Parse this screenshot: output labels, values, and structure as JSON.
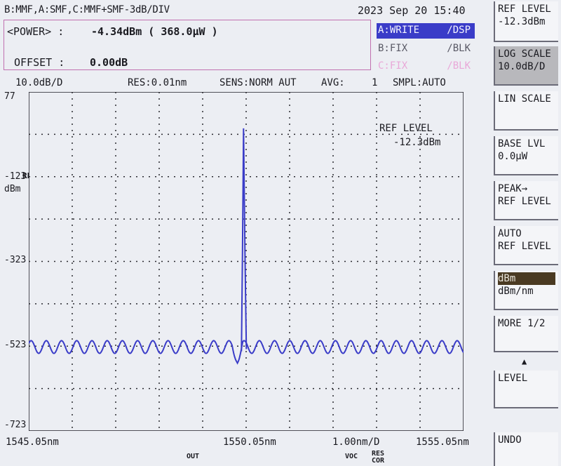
{
  "header": {
    "trace_config": "B:MMF,A:SMF,C:MMF+SMF-3dB/DIV",
    "datetime": "2023 Sep 20 15:40"
  },
  "power_panel": {
    "power_label": "<POWER> :",
    "power_value": "-4.34dBm ( 368.0µW )",
    "offset_label": "OFFSET :",
    "offset_value": "0.00dB"
  },
  "traces": [
    {
      "name": "A:WRITE",
      "mode": "/DSP",
      "color": "#3a3cc8"
    },
    {
      "name": "B:FIX",
      "mode": "/BLK",
      "color": "#5a5a66"
    },
    {
      "name": "C:FIX",
      "mode": "/BLK",
      "color": "#e9a8d8"
    }
  ],
  "info_bar": {
    "scale": "10.0dB/D",
    "res": "RES:0.01nm",
    "sens": "SENS:NORM AUT",
    "avg_label": "AVG:",
    "avg_value": "1",
    "smpl": "SMPL:AUTO"
  },
  "chart_data": {
    "type": "line",
    "title": "",
    "xlabel": "",
    "ylabel": "dBm",
    "ylim": [
      -723,
      77
    ],
    "xlim": [
      1545.05,
      1555.05
    ],
    "x_ticks": [
      "1545.05nm",
      "1550.05nm",
      "1555.05nm"
    ],
    "x_div_label": "1.00nm/D",
    "y_ticks": [
      "77",
      "-123",
      "-323",
      "-523",
      "-723"
    ],
    "y_ref_marker": "REF",
    "y_unit": "dBm",
    "ref_level_annotation": {
      "label": "REF LEVEL",
      "value": "-12.3dBm"
    },
    "grid": true,
    "series": [
      {
        "color": "#3a3cc8",
        "baseline": -525,
        "ripple_amplitude": 15,
        "ripple_period_nm": 0.35,
        "peak": {
          "x": 1549.99,
          "y": -9
        },
        "dip": {
          "x": 1549.85,
          "y": -563
        }
      }
    ]
  },
  "softkeys": [
    {
      "label": "REF LEVEL",
      "value": "-12.3dBm"
    },
    {
      "label": "LOG SCALE",
      "value": "10.0dB/D",
      "highlight": true
    },
    {
      "label": "LIN SCALE",
      "value": ""
    },
    {
      "label": "BASE LVL",
      "value": "0.0µW"
    },
    {
      "label": "PEAK→",
      "value": "REF LEVEL"
    },
    {
      "label": "AUTO",
      "value": "REF LEVEL"
    },
    {
      "label": "dBm",
      "value": "dBm/nm",
      "selected": 0
    },
    {
      "label": "MORE 1/2",
      "value": ""
    },
    {
      "label": "LEVEL",
      "value": ""
    },
    {
      "label": "UNDO",
      "value": ""
    }
  ],
  "footer": {
    "left_tag": "OUT",
    "right_tag": "VOC",
    "res_tag": "RES",
    "cor_tag": "COR"
  }
}
